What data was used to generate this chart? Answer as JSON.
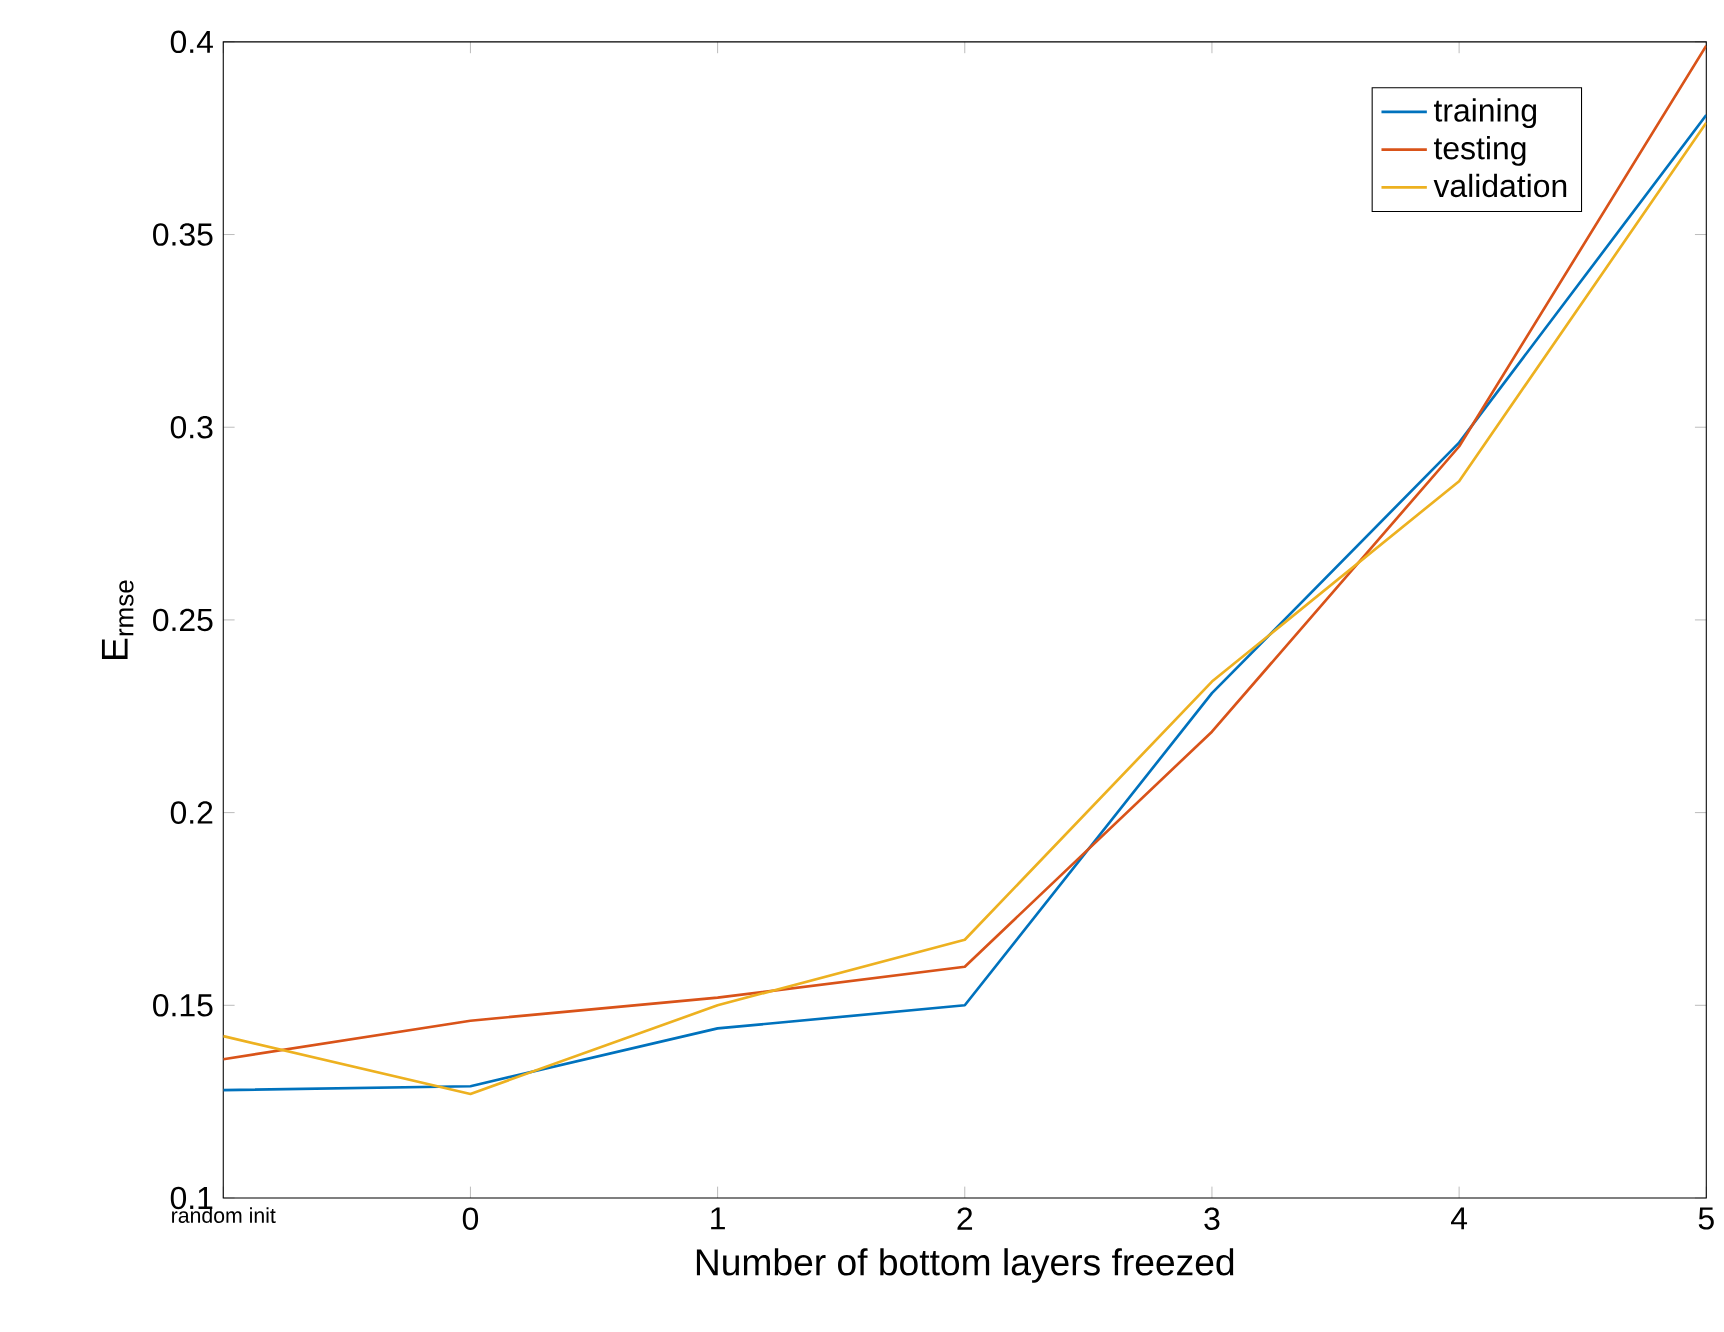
{
  "chart_data": {
    "type": "line",
    "xlabel": "Number of bottom layers freezed",
    "ylabel": "E$_{rmse}$",
    "categories": [
      "random init",
      "0",
      "1",
      "2",
      "3",
      "4",
      "5"
    ],
    "ylim": [
      0.1,
      0.4
    ],
    "yticks": [
      0.1,
      0.15,
      0.2,
      0.25,
      0.3,
      0.35,
      0.4
    ],
    "grid": false,
    "legend": "top right",
    "marker": "none",
    "line_style": "solid",
    "series": [
      {
        "name": "training",
        "color": "#0072bd",
        "values": [
          0.128,
          0.129,
          0.144,
          0.15,
          0.231,
          0.296,
          0.381
        ]
      },
      {
        "name": "testing",
        "color": "#d95319",
        "values": [
          0.136,
          0.146,
          0.152,
          0.16,
          0.221,
          0.295,
          0.399
        ]
      },
      {
        "name": "validation",
        "color": "#edb120",
        "values": [
          0.142,
          0.127,
          0.15,
          0.167,
          0.234,
          0.286,
          0.379
        ]
      }
    ]
  }
}
